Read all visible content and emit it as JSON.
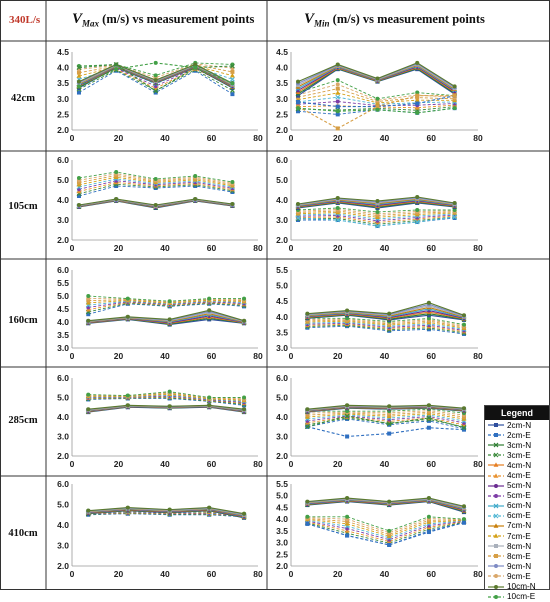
{
  "corner_label": "340L/s",
  "col_titles": [
    {
      "sym": "V",
      "sub": "Max",
      "rest": " (m/s) vs measurement points"
    },
    {
      "sym": "V",
      "sub": "Min",
      "rest": " (m/s) vs measurement points"
    }
  ],
  "legend": {
    "title": "Legend",
    "items": [
      {
        "name": "2cm-N",
        "color": "#2f4f9e",
        "dash": false,
        "marker": "square"
      },
      {
        "name": "2cm-E",
        "color": "#2f6fc0",
        "dash": true,
        "marker": "square"
      },
      {
        "name": "3cm-N",
        "color": "#2e7d32",
        "dash": false,
        "marker": "x"
      },
      {
        "name": "3cm-E",
        "color": "#3b8a3b",
        "dash": true,
        "marker": "x"
      },
      {
        "name": "4cm-N",
        "color": "#e67e22",
        "dash": false,
        "marker": "triangle"
      },
      {
        "name": "4cm-E",
        "color": "#e8912e",
        "dash": true,
        "marker": "triangle"
      },
      {
        "name": "5cm-N",
        "color": "#6a2c91",
        "dash": false,
        "marker": "circle"
      },
      {
        "name": "5cm-E",
        "color": "#7d3ca6",
        "dash": true,
        "marker": "circle"
      },
      {
        "name": "6cm-N",
        "color": "#3fa9c9",
        "dash": false,
        "marker": "x"
      },
      {
        "name": "6cm-E",
        "color": "#52b7d4",
        "dash": true,
        "marker": "x"
      },
      {
        "name": "7cm-N",
        "color": "#c87f0a",
        "dash": false,
        "marker": "triangle"
      },
      {
        "name": "7cm-E",
        "color": "#d4a017",
        "dash": true,
        "marker": "triangle"
      },
      {
        "name": "8cm-N",
        "color": "#a9b0bb",
        "dash": false,
        "marker": "square"
      },
      {
        "name": "8cm-E",
        "color": "#d69e45",
        "dash": true,
        "marker": "square"
      },
      {
        "name": "9cm-N",
        "color": "#7e8bc4",
        "dash": false,
        "marker": "circle"
      },
      {
        "name": "9cm-E",
        "color": "#d9a76a",
        "dash": true,
        "marker": "circle"
      },
      {
        "name": "10cm-N",
        "color": "#5b7a2e",
        "dash": false,
        "marker": "circle"
      },
      {
        "name": "10cm-E",
        "color": "#43a047",
        "dash": true,
        "marker": "circle"
      }
    ]
  },
  "chart_data": [
    {
      "type": "line",
      "row_label": "42cm",
      "panel": "Vmax",
      "ylim": [
        2.0,
        4.5
      ],
      "yticks": [
        2.0,
        2.5,
        3.0,
        3.5,
        4.0,
        4.5
      ],
      "xlim": [
        0,
        80
      ],
      "xticks": [
        0,
        20,
        40,
        60,
        80
      ],
      "x": [
        3,
        19,
        36,
        53,
        69
      ],
      "band_n": {
        "upper": [
          3.55,
          4.1,
          3.6,
          4.1,
          3.5
        ],
        "lower": [
          3.35,
          4.0,
          3.5,
          4.0,
          3.35
        ]
      },
      "band_e": {
        "upper": [
          4.05,
          4.1,
          3.75,
          4.15,
          4.1
        ],
        "lower": [
          3.2,
          3.9,
          3.2,
          3.9,
          3.15
        ]
      },
      "highlight": [
        {
          "series": "3cm-E",
          "values": [
            4.0,
            4.1,
            3.25,
            4.0,
            4.05
          ]
        },
        {
          "series": "10cm-E",
          "values": [
            3.4,
            3.95,
            4.15,
            4.0,
            3.5
          ]
        }
      ]
    },
    {
      "type": "line",
      "row_label": "42cm",
      "panel": "Vmin",
      "ylim": [
        2.0,
        4.5
      ],
      "yticks": [
        2.0,
        2.5,
        3.0,
        3.5,
        4.0,
        4.5
      ],
      "xlim": [
        0,
        80
      ],
      "xticks": [
        0,
        20,
        40,
        60,
        80
      ],
      "x": [
        3,
        20,
        37,
        54,
        70
      ],
      "band_n": {
        "upper": [
          3.55,
          4.1,
          3.65,
          4.15,
          3.4
        ],
        "lower": [
          3.1,
          3.95,
          3.55,
          3.95,
          3.15
        ]
      },
      "band_e": {
        "upper": [
          3.2,
          3.6,
          3.0,
          3.2,
          3.1
        ],
        "lower": [
          2.6,
          2.5,
          2.65,
          2.55,
          2.7
        ]
      },
      "highlight": [
        {
          "series": "2cm-E",
          "values": [
            2.9,
            2.75,
            2.75,
            2.85,
            3.1
          ]
        },
        {
          "series": "8cm-E",
          "values": [
            2.75,
            2.05,
            2.75,
            3.1,
            3.1
          ]
        },
        {
          "series": "10cm-E",
          "values": [
            2.7,
            2.6,
            2.65,
            2.55,
            2.7
          ]
        }
      ]
    },
    {
      "type": "line",
      "row_label": "105cm",
      "panel": "Vmax",
      "ylim": [
        2.0,
        6.0
      ],
      "yticks": [
        2.0,
        3.0,
        4.0,
        5.0,
        6.0
      ],
      "xlim": [
        0,
        80
      ],
      "xticks": [
        0,
        20,
        40,
        60,
        80
      ],
      "x": [
        3,
        19,
        36,
        53,
        69
      ],
      "band_n": {
        "upper": [
          3.75,
          4.05,
          3.75,
          4.05,
          3.8
        ],
        "lower": [
          3.65,
          3.95,
          3.6,
          3.95,
          3.7
        ]
      },
      "band_e": {
        "upper": [
          5.1,
          5.4,
          5.05,
          5.2,
          4.9
        ],
        "lower": [
          4.2,
          4.7,
          4.6,
          4.7,
          4.4
        ]
      },
      "highlight": []
    },
    {
      "type": "line",
      "row_label": "105cm",
      "panel": "Vmin",
      "ylim": [
        2.0,
        6.0
      ],
      "yticks": [
        2.0,
        3.0,
        4.0,
        5.0,
        6.0
      ],
      "xlim": [
        0,
        80
      ],
      "xticks": [
        0,
        20,
        40,
        60,
        80
      ],
      "x": [
        3,
        20,
        37,
        54,
        70
      ],
      "band_n": {
        "upper": [
          3.8,
          4.1,
          3.95,
          4.15,
          3.85
        ],
        "lower": [
          3.6,
          3.85,
          3.6,
          3.85,
          3.65
        ]
      },
      "band_e": {
        "upper": [
          3.5,
          3.6,
          3.4,
          3.5,
          3.5
        ],
        "lower": [
          3.0,
          3.0,
          2.7,
          2.9,
          3.1
        ]
      },
      "highlight": [
        {
          "series": "6cm-E",
          "values": [
            3.1,
            3.0,
            2.7,
            2.9,
            3.15
          ]
        }
      ]
    },
    {
      "type": "line",
      "row_label": "160cm",
      "panel": "Vmax",
      "ylim": [
        3.0,
        6.0
      ],
      "yticks": [
        3.0,
        3.5,
        4.0,
        4.5,
        5.0,
        5.5,
        6.0
      ],
      "xlim": [
        0,
        80
      ],
      "xticks": [
        0,
        20,
        40,
        60,
        80
      ],
      "x": [
        7,
        24,
        42,
        59,
        74
      ],
      "band_n": {
        "upper": [
          4.05,
          4.2,
          4.1,
          4.45,
          4.05
        ],
        "lower": [
          3.95,
          4.1,
          3.9,
          4.1,
          3.95
        ]
      },
      "band_e": {
        "upper": [
          5.0,
          4.9,
          4.8,
          4.9,
          4.9
        ],
        "lower": [
          4.3,
          4.7,
          4.6,
          4.7,
          4.6
        ]
      },
      "highlight": []
    },
    {
      "type": "line",
      "row_label": "160cm",
      "panel": "Vmin",
      "ylim": [
        3.0,
        5.5
      ],
      "yticks": [
        3.0,
        3.5,
        4.0,
        4.5,
        5.0,
        5.5
      ],
      "xlim": [
        0,
        80
      ],
      "xticks": [
        0,
        20,
        40,
        60,
        80
      ],
      "x": [
        7,
        24,
        42,
        59,
        74
      ],
      "band_n": {
        "upper": [
          4.1,
          4.2,
          4.1,
          4.45,
          4.05
        ],
        "lower": [
          3.95,
          4.05,
          3.9,
          4.05,
          3.9
        ]
      },
      "band_e": {
        "upper": [
          3.95,
          3.95,
          3.85,
          3.95,
          3.75
        ],
        "lower": [
          3.65,
          3.7,
          3.55,
          3.6,
          3.45
        ]
      },
      "highlight": []
    },
    {
      "type": "line",
      "row_label": "285cm",
      "panel": "Vmax",
      "ylim": [
        2.0,
        6.0
      ],
      "yticks": [
        2.0,
        3.0,
        4.0,
        5.0,
        6.0
      ],
      "xlim": [
        0,
        80
      ],
      "xticks": [
        0,
        20,
        40,
        60,
        80
      ],
      "x": [
        7,
        24,
        42,
        59,
        74
      ],
      "band_n": {
        "upper": [
          4.4,
          4.6,
          4.55,
          4.6,
          4.4
        ],
        "lower": [
          4.25,
          4.5,
          4.45,
          4.5,
          4.25
        ]
      },
      "band_e": {
        "upper": [
          5.15,
          5.1,
          5.3,
          5.0,
          5.0
        ],
        "lower": [
          4.9,
          4.95,
          4.95,
          4.8,
          4.6
        ]
      },
      "highlight": []
    },
    {
      "type": "line",
      "row_label": "285cm",
      "panel": "Vmin",
      "ylim": [
        2.0,
        6.0
      ],
      "yticks": [
        2.0,
        3.0,
        4.0,
        5.0,
        6.0
      ],
      "xlim": [
        0,
        80
      ],
      "xticks": [
        0,
        20,
        40,
        60,
        80
      ],
      "x": [
        7,
        24,
        42,
        59,
        74
      ],
      "band_n": {
        "upper": [
          4.4,
          4.6,
          4.55,
          4.6,
          4.45
        ],
        "lower": [
          4.25,
          4.45,
          4.4,
          4.45,
          4.3
        ]
      },
      "band_e": {
        "upper": [
          4.3,
          4.3,
          4.3,
          4.4,
          4.2
        ],
        "lower": [
          3.5,
          3.9,
          3.6,
          3.8,
          3.4
        ]
      },
      "highlight": [
        {
          "series": "2cm-E",
          "values": [
            3.5,
            3.0,
            3.15,
            3.45,
            3.35
          ]
        },
        {
          "series": "3cm-E",
          "values": [
            3.5,
            4.05,
            3.65,
            3.95,
            3.45
          ]
        }
      ]
    },
    {
      "type": "line",
      "row_label": "410cm",
      "panel": "Vmax",
      "ylim": [
        2.0,
        6.0
      ],
      "yticks": [
        2.0,
        3.0,
        4.0,
        5.0,
        6.0
      ],
      "xlim": [
        0,
        80
      ],
      "xticks": [
        0,
        20,
        40,
        60,
        80
      ],
      "x": [
        7,
        24,
        42,
        59,
        74
      ],
      "band_n": {
        "upper": [
          4.7,
          4.85,
          4.75,
          4.85,
          4.55
        ],
        "lower": [
          4.55,
          4.7,
          4.6,
          4.7,
          4.35
        ]
      },
      "band_e": {
        "upper": [
          4.7,
          4.7,
          4.75,
          4.7,
          4.55
        ],
        "lower": [
          4.5,
          4.55,
          4.5,
          4.5,
          4.4
        ]
      },
      "highlight": []
    },
    {
      "type": "line",
      "row_label": "410cm",
      "panel": "Vmin",
      "ylim": [
        2.0,
        5.5
      ],
      "yticks": [
        2.0,
        2.5,
        3.0,
        3.5,
        4.0,
        4.5,
        5.0,
        5.5
      ],
      "xlim": [
        0,
        80
      ],
      "xticks": [
        0,
        20,
        40,
        60,
        80
      ],
      "x": [
        7,
        24,
        42,
        59,
        74
      ],
      "band_n": {
        "upper": [
          4.75,
          4.9,
          4.75,
          4.9,
          4.55
        ],
        "lower": [
          4.6,
          4.75,
          4.6,
          4.75,
          4.3
        ]
      },
      "band_e": {
        "upper": [
          4.1,
          4.1,
          3.5,
          4.1,
          4.0
        ],
        "lower": [
          3.8,
          3.3,
          2.9,
          3.5,
          3.85
        ]
      },
      "highlight": [
        {
          "series": "2cm-E",
          "values": [
            3.8,
            3.3,
            2.9,
            3.45,
            3.85
          ]
        }
      ]
    }
  ]
}
